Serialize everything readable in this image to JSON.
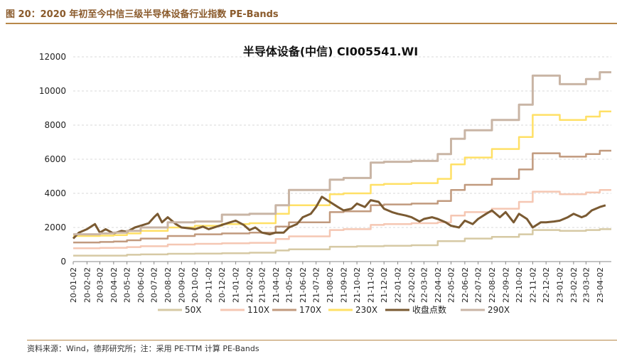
{
  "figure": {
    "title": "图 20：2020 年初至今中信三级半导体设备行业指数 PE-Bands",
    "source": "资料来源：Wind，德邦研究所；注：采用 PE-TTM 计算 PE-Bands"
  },
  "chart_data": {
    "type": "line",
    "title": "半导体设备(中信) CI005541.WI",
    "xlabel": "",
    "ylabel": "",
    "ylim": [
      0,
      12000
    ],
    "yticks": [
      0,
      2000,
      4000,
      6000,
      8000,
      10000,
      12000
    ],
    "x_ticks": [
      "20-01-02",
      "20-02-02",
      "20-03-02",
      "20-04-02",
      "20-05-02",
      "20-06-02",
      "20-07-02",
      "20-08-02",
      "20-09-02",
      "20-10-02",
      "20-11-02",
      "20-12-02",
      "21-01-02",
      "21-02-02",
      "21-03-02",
      "21-04-02",
      "21-05-02",
      "21-06-02",
      "21-07-02",
      "21-08-02",
      "21-09-02",
      "21-10-02",
      "21-11-02",
      "21-12-02",
      "22-01-02",
      "22-02-02",
      "22-03-02",
      "22-04-02",
      "22-05-02",
      "22-06-02",
      "22-07-02",
      "22-08-02",
      "22-09-02",
      "22-10-02",
      "22-11-02",
      "22-12-02",
      "23-01-02",
      "23-02-02",
      "23-03-02",
      "23-04-02"
    ],
    "grid": "horizontal",
    "legend": "bottom",
    "series": [
      {
        "name": "50X",
        "color": "#d6c9a4",
        "width": 2.5,
        "x": [
          "20-01-02",
          "20-04-02",
          "20-05-02",
          "20-06-02",
          "20-08-02",
          "20-10-02",
          "20-12-02",
          "21-02-02",
          "21-04-02",
          "21-05-02",
          "21-08-02",
          "21-10-02",
          "21-12-02",
          "22-02-02",
          "22-04-02",
          "22-06-02",
          "22-08-02",
          "22-10-02",
          "22-11-02",
          "23-01-02",
          "23-03-02",
          "23-04-02"
        ],
        "values": [
          350,
          350,
          400,
          420,
          460,
          470,
          490,
          520,
          650,
          720,
          870,
          900,
          930,
          960,
          1200,
          1350,
          1450,
          1600,
          1850,
          1800,
          1850,
          1900
        ]
      },
      {
        "name": "110X",
        "color": "#f5c7b3",
        "width": 2.5,
        "x": [
          "20-01-02",
          "20-03-02",
          "20-04-02",
          "20-05-02",
          "20-06-02",
          "20-08-02",
          "20-10-02",
          "20-12-02",
          "21-02-02",
          "21-04-02",
          "21-05-02",
          "21-08-02",
          "21-09-02",
          "21-11-02",
          "21-12-02",
          "22-02-02",
          "22-04-02",
          "22-05-02",
          "22-06-02",
          "22-08-02",
          "22-10-02",
          "22-11-02",
          "23-01-02",
          "23-03-02",
          "23-04-02"
        ],
        "values": [
          780,
          800,
          810,
          850,
          900,
          1000,
          1040,
          1070,
          1100,
          1320,
          1480,
          1850,
          1900,
          2150,
          2200,
          2250,
          2300,
          2700,
          2900,
          3100,
          3500,
          4100,
          3950,
          4050,
          4200
        ]
      },
      {
        "name": "170X",
        "color": "#c19a7e",
        "width": 2.5,
        "x": [
          "20-01-02",
          "20-03-02",
          "20-04-02",
          "20-05-02",
          "20-06-02",
          "20-08-02",
          "20-10-02",
          "20-12-02",
          "21-02-02",
          "21-04-02",
          "21-05-02",
          "21-08-02",
          "21-09-02",
          "21-11-02",
          "21-12-02",
          "22-02-02",
          "22-04-02",
          "22-05-02",
          "22-06-02",
          "22-08-02",
          "22-10-02",
          "22-11-02",
          "23-01-02",
          "23-03-02",
          "23-04-02"
        ],
        "values": [
          1120,
          1150,
          1180,
          1250,
          1350,
          1500,
          1600,
          1650,
          1700,
          2050,
          2300,
          2900,
          2950,
          3300,
          3350,
          3400,
          3550,
          4200,
          4500,
          4850,
          5400,
          6350,
          6150,
          6300,
          6500
        ]
      },
      {
        "name": "230X",
        "color": "#ffe066",
        "width": 2.5,
        "x": [
          "20-01-02",
          "20-03-02",
          "20-04-02",
          "20-05-02",
          "20-06-02",
          "20-08-02",
          "20-10-02",
          "20-12-02",
          "21-02-02",
          "21-04-02",
          "21-05-02",
          "21-08-02",
          "21-09-02",
          "21-11-02",
          "21-12-02",
          "22-02-02",
          "22-04-02",
          "22-05-02",
          "22-06-02",
          "22-08-02",
          "22-10-02",
          "22-11-02",
          "23-01-02",
          "23-03-02",
          "23-04-02"
        ],
        "values": [
          1500,
          1520,
          1550,
          1650,
          1800,
          2000,
          2100,
          2200,
          2250,
          2800,
          3300,
          3950,
          4000,
          4500,
          4550,
          4600,
          4850,
          5700,
          6100,
          6600,
          7300,
          8600,
          8300,
          8500,
          8800
        ]
      },
      {
        "name": "收盘点数",
        "color": "#7a5a32",
        "width": 3,
        "x": [
          "20-01-02",
          "20-01-15",
          "20-02-02",
          "20-02-20",
          "20-03-02",
          "20-03-15",
          "20-04-02",
          "20-04-20",
          "20-05-02",
          "20-05-20",
          "20-06-02",
          "20-06-20",
          "20-07-02",
          "20-07-10",
          "20-07-20",
          "20-08-02",
          "20-08-20",
          "20-09-02",
          "20-09-20",
          "20-10-02",
          "20-10-20",
          "20-11-02",
          "20-11-20",
          "20-12-02",
          "20-12-20",
          "21-01-02",
          "21-01-20",
          "21-02-02",
          "21-02-15",
          "21-03-02",
          "21-03-20",
          "21-04-02",
          "21-04-20",
          "21-05-02",
          "21-05-20",
          "21-06-02",
          "21-06-20",
          "21-07-02",
          "21-07-15",
          "21-08-02",
          "21-08-20",
          "21-09-02",
          "21-09-20",
          "21-10-02",
          "21-10-20",
          "21-11-02",
          "21-11-20",
          "21-12-02",
          "21-12-20",
          "22-01-02",
          "22-01-20",
          "22-02-02",
          "22-02-20",
          "22-03-02",
          "22-03-20",
          "22-04-02",
          "22-04-20",
          "22-05-02",
          "22-05-20",
          "22-06-02",
          "22-06-20",
          "22-07-02",
          "22-07-20",
          "22-08-02",
          "22-08-20",
          "22-09-02",
          "22-09-20",
          "22-10-02",
          "22-10-20",
          "22-11-02",
          "22-11-20",
          "22-12-02",
          "22-12-20",
          "23-01-02",
          "23-01-20",
          "23-02-02",
          "23-02-20",
          "23-03-02",
          "23-03-15",
          "23-04-02",
          "23-04-15"
        ],
        "values": [
          1350,
          1700,
          1900,
          2200,
          1700,
          1900,
          1650,
          1800,
          1750,
          2000,
          2100,
          2250,
          2600,
          2800,
          2300,
          2600,
          2200,
          2000,
          1950,
          1900,
          2050,
          1900,
          2050,
          2150,
          2300,
          2400,
          2150,
          1850,
          2000,
          1700,
          1600,
          1700,
          1700,
          2000,
          2200,
          2600,
          2800,
          3200,
          3800,
          3500,
          3200,
          3000,
          3100,
          3400,
          3200,
          3600,
          3500,
          3100,
          2900,
          2800,
          2700,
          2600,
          2350,
          2500,
          2600,
          2500,
          2300,
          2100,
          2000,
          2400,
          2200,
          2500,
          2800,
          3000,
          2600,
          2900,
          2300,
          2800,
          2500,
          2000,
          2300,
          2300,
          2350,
          2400,
          2600,
          2800,
          2600,
          2700,
          3000,
          3200,
          3300
        ]
      },
      {
        "name": "290X",
        "color": "#c9b5a5",
        "width": 3,
        "x": [
          "20-01-02",
          "20-03-02",
          "20-04-02",
          "20-05-02",
          "20-06-02",
          "20-08-02",
          "20-10-02",
          "20-12-02",
          "21-02-02",
          "21-04-02",
          "21-05-02",
          "21-08-02",
          "21-09-02",
          "21-11-02",
          "21-12-02",
          "22-02-02",
          "22-04-02",
          "22-05-02",
          "22-06-02",
          "22-08-02",
          "22-10-02",
          "22-11-02",
          "23-01-02",
          "23-03-02",
          "23-04-02"
        ],
        "values": [
          1600,
          1650,
          1700,
          1800,
          2000,
          2300,
          2350,
          2750,
          2800,
          3300,
          4200,
          4800,
          4900,
          5800,
          5850,
          5900,
          6300,
          7200,
          7700,
          8300,
          9200,
          10900,
          10400,
          10700,
          11100
        ]
      }
    ]
  }
}
